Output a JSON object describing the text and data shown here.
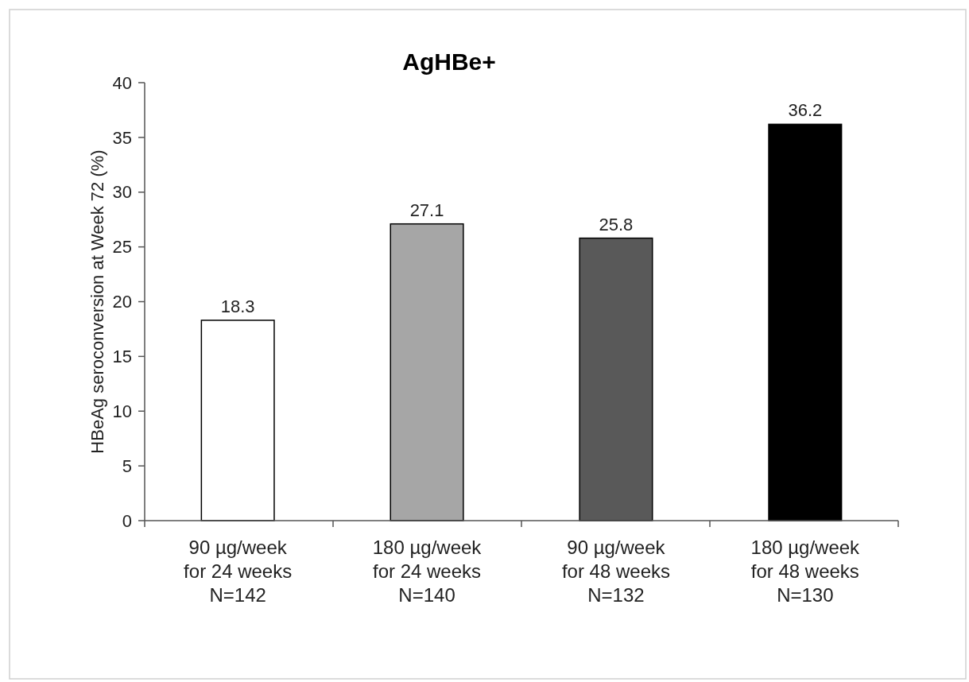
{
  "chart_data": {
    "type": "bar",
    "title": "AgHBe+",
    "ylabel": "HBeAg seroconversion at Week 72 (%)",
    "categories": [
      "90 µg/week\nfor 24 weeks\nN=142",
      "180 µg/week\nfor 24 weeks\nN=140",
      "90 µg/week\nfor 48 weeks\nN=132",
      "180 µg/week\nfor 48 weeks\nN=130"
    ],
    "values": [
      18.3,
      27.1,
      25.8,
      36.2
    ],
    "colors": [
      "#ffffff",
      "#a6a6a6",
      "#595959",
      "#000000"
    ],
    "ylim": [
      0,
      40
    ],
    "yticks": [
      0,
      5,
      10,
      15,
      20,
      25,
      30,
      35,
      40
    ],
    "data_labels": true,
    "grid": false
  }
}
